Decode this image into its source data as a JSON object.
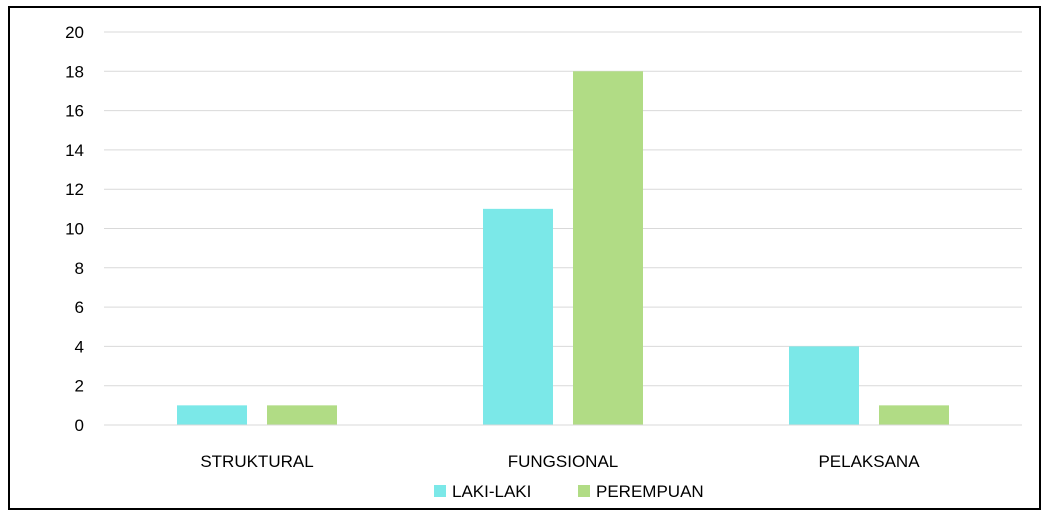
{
  "chart_data": {
    "type": "bar",
    "categories": [
      "STRUKTURAL",
      "FUNGSIONAL",
      "PELAKSANA"
    ],
    "series": [
      {
        "name": "LAKI-LAKI",
        "values": [
          1,
          11,
          4
        ],
        "color": "#7be8e8"
      },
      {
        "name": "PEREMPUAN",
        "values": [
          1,
          18,
          1
        ],
        "color": "#b1dc85"
      }
    ],
    "ylim": [
      0,
      20
    ],
    "yticks": [
      0,
      2,
      4,
      6,
      8,
      10,
      12,
      14,
      16,
      18,
      20
    ],
    "grid": true,
    "legend_position": "bottom",
    "title": "",
    "xlabel": "",
    "ylabel": ""
  },
  "colors": {
    "gridline": "#d9d9d9",
    "frame": "#000000"
  }
}
